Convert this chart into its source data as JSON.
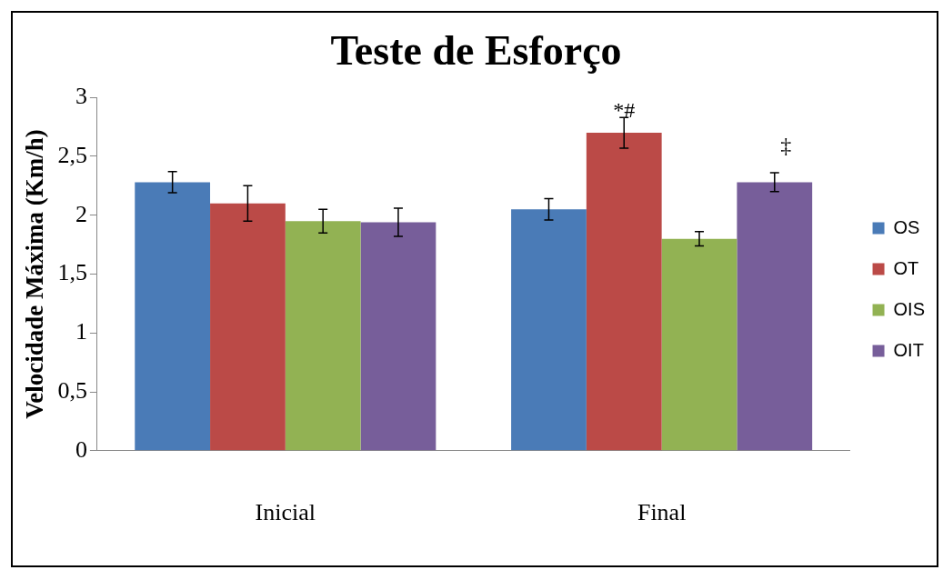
{
  "chart_data": {
    "type": "bar",
    "title": "Teste de Esforço",
    "ylabel": "Velocidade Máxima (Km/h)",
    "categories": [
      "Inicial",
      "Final"
    ],
    "series": [
      {
        "name": "OS",
        "color": "#4a7bb7",
        "values": [
          2.28,
          2.05
        ],
        "errors": [
          0.09,
          0.09
        ]
      },
      {
        "name": "OT",
        "color": "#bb4a47",
        "values": [
          2.1,
          2.7
        ],
        "errors": [
          0.15,
          0.13
        ]
      },
      {
        "name": "OIS",
        "color": "#92b253",
        "values": [
          1.95,
          1.8
        ],
        "errors": [
          0.1,
          0.06
        ]
      },
      {
        "name": "OIT",
        "color": "#775e9a",
        "values": [
          1.94,
          2.28
        ],
        "errors": [
          0.12,
          0.08
        ]
      }
    ],
    "ylim": [
      0,
      3
    ],
    "yticks": [
      0,
      {
        "value": 0.5,
        "label": "0,5"
      },
      1,
      {
        "value": 1.5,
        "label": "1,5"
      },
      2,
      {
        "value": 2.5,
        "label": "2,5"
      },
      3
    ],
    "annotations": [
      "*#",
      "‡"
    ],
    "grid": false,
    "legend": "right"
  }
}
